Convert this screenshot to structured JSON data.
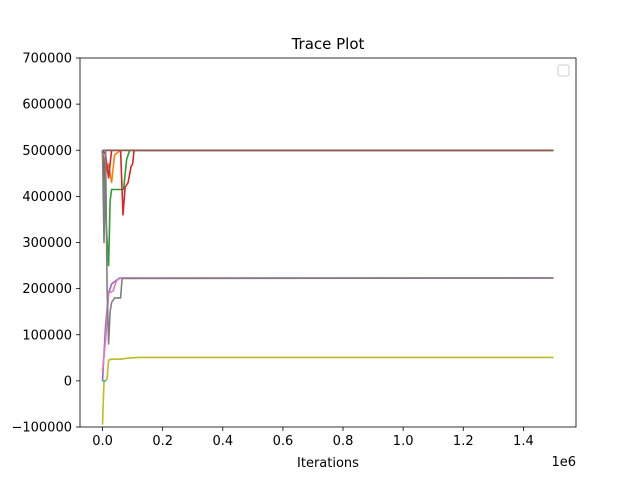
{
  "chart_data": {
    "type": "line",
    "title": "Trace Plot",
    "xlabel": "Iterations",
    "ylabel": "",
    "x_offset_label": "1e6",
    "xlim": [
      -0.075,
      1.575
    ],
    "ylim": [
      -100000,
      700000
    ],
    "x_ticks": [
      0.0,
      0.2,
      0.4,
      0.6,
      0.8,
      1.0,
      1.2,
      1.4
    ],
    "x_tick_labels": [
      "0.0",
      "0.2",
      "0.4",
      "0.6",
      "0.8",
      "1.0",
      "1.2",
      "1.4"
    ],
    "y_ticks": [
      -100000,
      0,
      100000,
      200000,
      300000,
      400000,
      500000,
      600000,
      700000
    ],
    "y_tick_labels": [
      "−100000",
      "0",
      "100000",
      "200000",
      "300000",
      "400000",
      "500000",
      "600000",
      "700000"
    ],
    "grid": false,
    "legend": {
      "placement": "top-right",
      "entries": []
    },
    "series": [
      {
        "color": "#1f77b4",
        "points": [
          [
            0,
            500000
          ],
          [
            0.01,
            500000
          ],
          [
            1.5,
            500000
          ]
        ]
      },
      {
        "color": "#ff7f0e",
        "points": [
          [
            0,
            500000
          ],
          [
            0.01,
            450000
          ],
          [
            0.02,
            470000
          ],
          [
            0.03,
            430000
          ],
          [
            0.04,
            490000
          ],
          [
            0.06,
            500000
          ],
          [
            1.5,
            500000
          ]
        ]
      },
      {
        "color": "#2ca02c",
        "points": [
          [
            0,
            500000
          ],
          [
            0.01,
            360000
          ],
          [
            0.02,
            250000
          ],
          [
            0.025,
            390000
          ],
          [
            0.03,
            415000
          ],
          [
            0.07,
            415000
          ],
          [
            0.08,
            480000
          ],
          [
            0.09,
            500000
          ],
          [
            1.5,
            500000
          ]
        ]
      },
      {
        "color": "#d62728",
        "points": [
          [
            0,
            500000
          ],
          [
            0.01,
            490000
          ],
          [
            0.02,
            440000
          ],
          [
            0.03,
            500000
          ],
          [
            0.06,
            500000
          ],
          [
            0.068,
            360000
          ],
          [
            0.075,
            420000
          ],
          [
            0.085,
            430000
          ],
          [
            0.095,
            465000
          ],
          [
            0.1,
            470000
          ],
          [
            0.105,
            500000
          ],
          [
            1.5,
            500000
          ]
        ]
      },
      {
        "color": "#9467bd",
        "points": [
          [
            0,
            0
          ],
          [
            0.01,
            120000
          ],
          [
            0.02,
            190000
          ],
          [
            0.03,
            210000
          ],
          [
            0.05,
            220000
          ],
          [
            0.06,
            223000
          ],
          [
            1.5,
            223000
          ]
        ]
      },
      {
        "color": "#8c564b",
        "points": [
          [
            0,
            500000
          ],
          [
            0.005,
            440000
          ],
          [
            0.01,
            500000
          ],
          [
            1.5,
            500000
          ]
        ]
      },
      {
        "color": "#e377c2",
        "points": [
          [
            0,
            20000
          ],
          [
            0.01,
            90000
          ],
          [
            0.02,
            190000
          ],
          [
            0.035,
            195000
          ],
          [
            0.045,
            215000
          ],
          [
            0.055,
            223000
          ],
          [
            1.5,
            223000
          ]
        ]
      },
      {
        "color": "#7f7f7f",
        "points": [
          [
            0,
            500000
          ],
          [
            0.005,
            300000
          ],
          [
            0.01,
            500000
          ],
          [
            0.015,
            200000
          ],
          [
            0.02,
            80000
          ],
          [
            0.025,
            150000
          ],
          [
            0.03,
            170000
          ],
          [
            0.04,
            180000
          ],
          [
            0.06,
            180000
          ],
          [
            0.065,
            222000
          ],
          [
            1.5,
            223000
          ]
        ]
      },
      {
        "color": "#bcbd22",
        "points": [
          [
            0,
            -95000
          ],
          [
            0.005,
            0
          ],
          [
            0.01,
            0
          ],
          [
            0.015,
            5000
          ],
          [
            0.02,
            45000
          ],
          [
            0.03,
            47000
          ],
          [
            0.06,
            47000
          ],
          [
            0.08,
            49000
          ],
          [
            0.1,
            50000
          ],
          [
            0.12,
            51000
          ],
          [
            1.5,
            51000
          ]
        ]
      },
      {
        "color": "#17becf",
        "points": [
          [
            0,
            0
          ],
          [
            0.01,
            0
          ]
        ]
      }
    ]
  }
}
